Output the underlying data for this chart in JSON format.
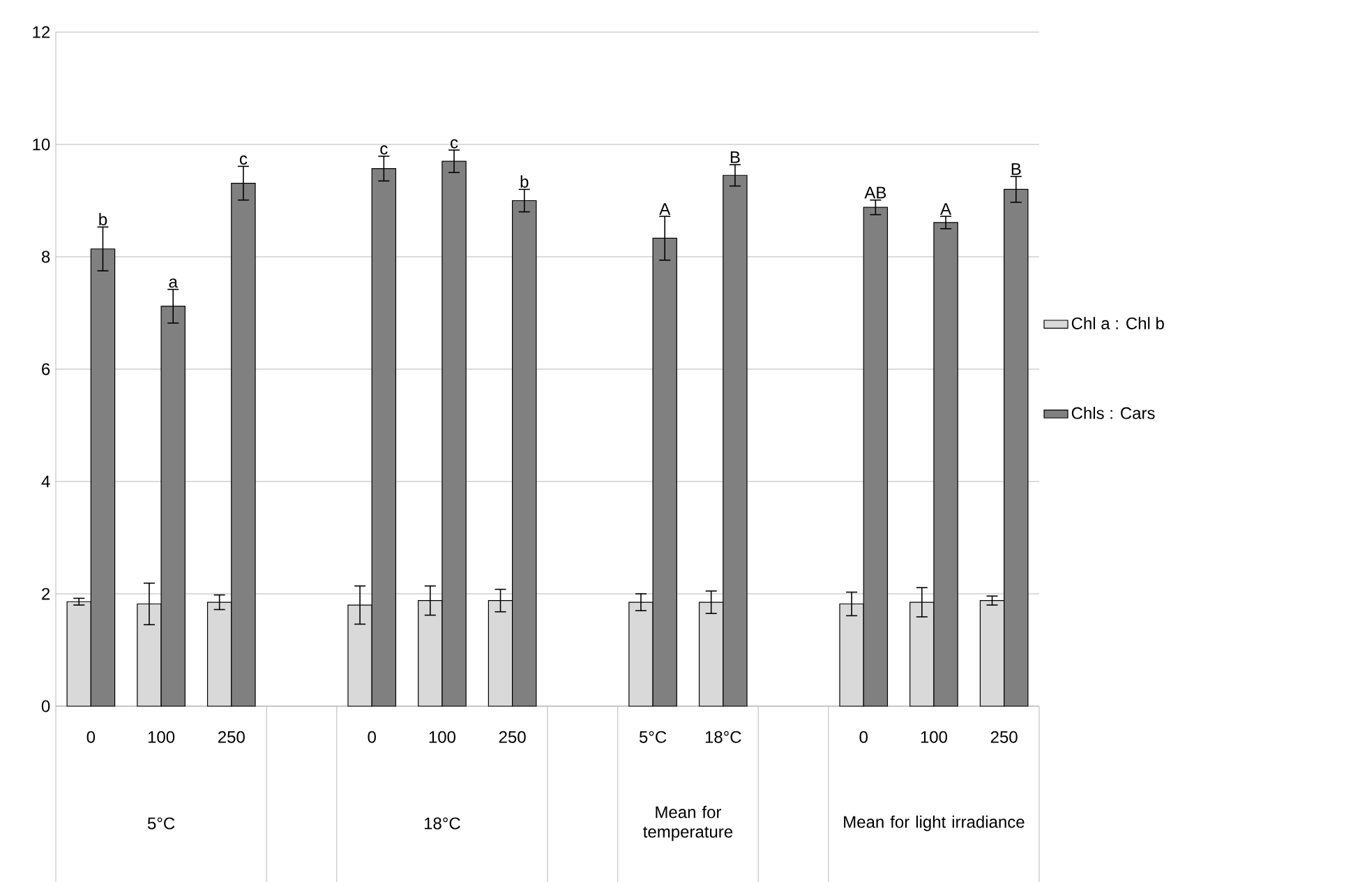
{
  "chart_data": {
    "type": "bar",
    "categories": [
      "0",
      "100",
      "250",
      null,
      "0",
      "100",
      "250",
      null,
      "5°C",
      "18°C",
      null,
      "0",
      "100",
      "250"
    ],
    "series": [
      {
        "name": "Chl a : Chl b",
        "color": "#d9d9d9",
        "values": [
          1.86,
          1.82,
          1.85,
          null,
          1.8,
          1.88,
          1.88,
          null,
          1.85,
          1.85,
          null,
          1.82,
          1.85,
          1.88
        ],
        "errors": [
          0.06,
          0.37,
          0.13,
          null,
          0.34,
          0.26,
          0.2,
          null,
          0.15,
          0.2,
          null,
          0.21,
          0.26,
          0.08
        ]
      },
      {
        "name": "Chls : Cars",
        "color": "#808080",
        "values": [
          8.14,
          7.12,
          9.31,
          null,
          9.57,
          9.7,
          9.0,
          null,
          8.33,
          9.45,
          null,
          8.88,
          8.61,
          9.2
        ],
        "errors": [
          0.39,
          0.3,
          0.3,
          null,
          0.22,
          0.2,
          0.2,
          null,
          0.39,
          0.19,
          null,
          0.13,
          0.11,
          0.23
        ],
        "value_labels": [
          "b",
          "a",
          "c",
          null,
          "c",
          "c",
          "b",
          null,
          "A",
          "B",
          null,
          "AB",
          "A",
          "B"
        ]
      }
    ],
    "ylim": [
      0,
      12
    ],
    "yticks": [
      0,
      2,
      4,
      6,
      8,
      10,
      12
    ],
    "grid": "y",
    "legend": "right",
    "annotations": [
      "5°C",
      "18°C",
      "Mean for temperature",
      "Mean for light irradiance"
    ]
  }
}
